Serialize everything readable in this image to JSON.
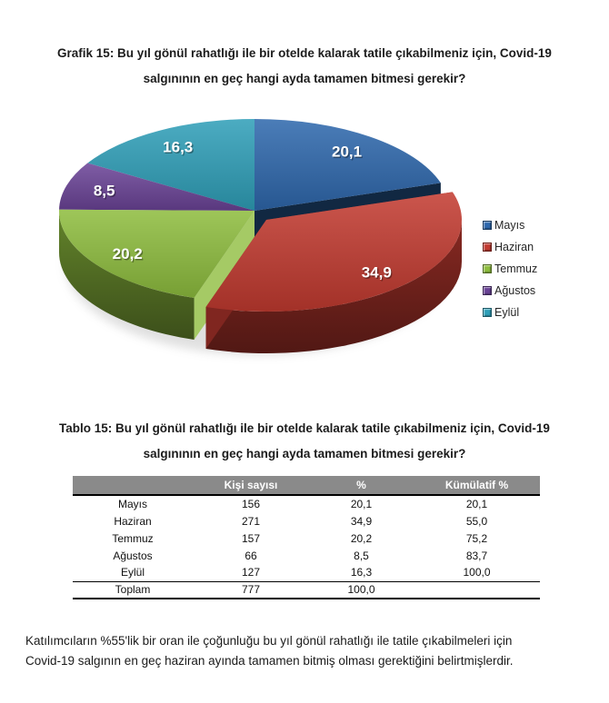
{
  "sections": {
    "chart_title": {
      "line1": "Grafik 15: Bu yıl gönül rahatlığı ile bir otelde kalarak tatile çıkabilmeniz için, Covid-19",
      "line2": "salgınının en geç hangi ayda tamamen bitmesi gerekir?"
    },
    "table_title": {
      "line1": "Tablo 15: Bu yıl gönül rahatlığı ile bir otelde kalarak tatile çıkabilmeniz için, Covid-19",
      "line2": "salgınının en geç hangi ayda tamamen bitmesi gerekir?"
    },
    "conclusion": {
      "line1": "Katılımcıların %55'lik bir oran ile çoğunluğu bu yıl gönül rahatlığı ile tatile çıkabilmeleri için",
      "line2": "Covid-19 salgının en geç haziran ayında tamamen bitmiş olması gerektiğini belirtmişlerdir."
    }
  },
  "chart_data": {
    "type": "pie",
    "style": "3d-exploded",
    "title": "Grafik 15: Bu yıl gönül rahatlığı ile bir otelde kalarak tatile çıkabilmeniz için, Covid-19 salgınının en geç hangi ayda tamamen bitmesi gerekir?",
    "categories": [
      "Mayıs",
      "Haziran",
      "Temmuz",
      "Ağustos",
      "Eylül"
    ],
    "values": [
      20.1,
      34.9,
      20.2,
      8.5,
      16.3
    ],
    "labels": [
      "20,1",
      "34,9",
      "20,2",
      "8,5",
      "16,3"
    ],
    "colors": [
      "#2e68ad",
      "#c23a30",
      "#8ebd3e",
      "#6a4396",
      "#2f9fb8"
    ],
    "exploded_slice": "Haziran",
    "legend_position": "right",
    "start_angle_deg": 0,
    "label_color": "#ffffff"
  },
  "table": {
    "columns": [
      "",
      "Kişi sayısı",
      "%",
      "Kümülatif %"
    ],
    "rows": [
      [
        "Mayıs",
        "156",
        "20,1",
        "20,1"
      ],
      [
        "Haziran",
        "271",
        "34,9",
        "55,0"
      ],
      [
        "Temmuz",
        "157",
        "20,2",
        "75,2"
      ],
      [
        "Ağustos",
        "66",
        "8,5",
        "83,7"
      ],
      [
        "Eylül",
        "127",
        "16,3",
        "100,0"
      ],
      [
        "Toplam",
        "777",
        "100,0",
        ""
      ]
    ]
  }
}
